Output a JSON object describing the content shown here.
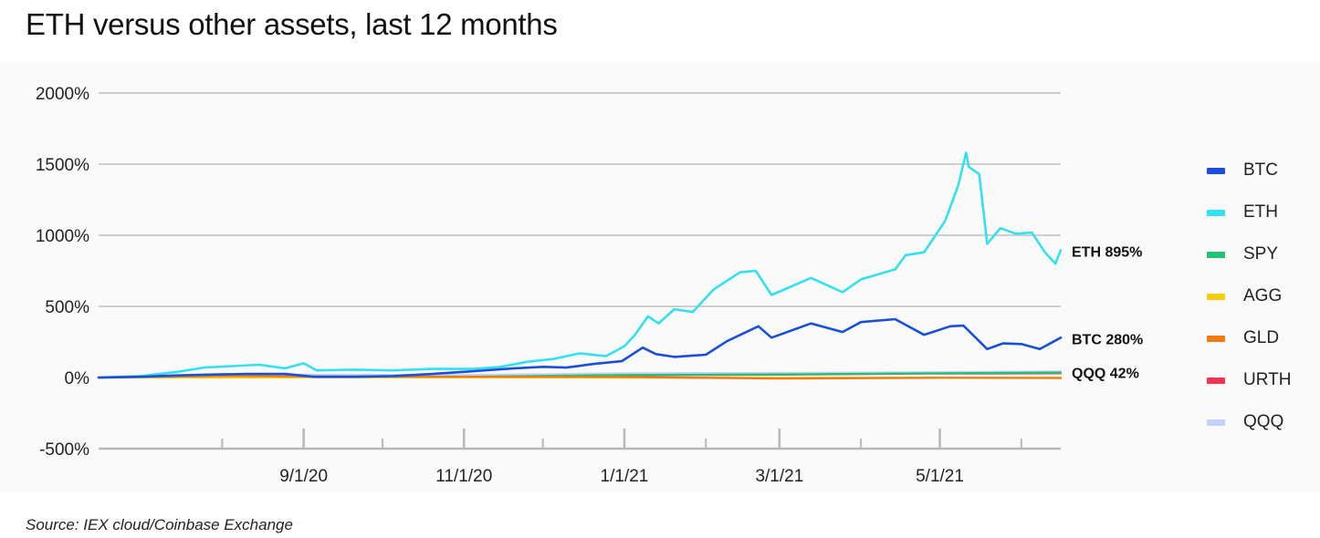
{
  "title": "ETH versus other assets, last 12 months",
  "source": "Source: IEX cloud/Coinbase Exchange",
  "chart_data": {
    "type": "line",
    "title": "ETH versus other assets, last 12 months",
    "xlabel": "",
    "ylabel": "",
    "ylim": [
      -500,
      2000
    ],
    "yticks": [
      "2000%",
      "1500%",
      "1000%",
      "500%",
      "0%",
      "-500%"
    ],
    "ytick_values": [
      2000,
      1500,
      1000,
      500,
      0,
      -500
    ],
    "xlim": [
      "2020-06-15",
      "2021-06-16"
    ],
    "xticks": [
      {
        "date": "2020-09-01",
        "label": "9/1/20"
      },
      {
        "date": "2020-11-01",
        "label": "11/1/20"
      },
      {
        "date": "2021-01-01",
        "label": "1/1/21"
      },
      {
        "date": "2021-03-01",
        "label": "3/1/21"
      },
      {
        "date": "2021-05-01",
        "label": "5/1/21"
      }
    ],
    "minor_xticks": [
      "2020-08-01",
      "2020-10-01",
      "2020-12-01",
      "2021-02-01",
      "2021-04-01",
      "2021-06-01"
    ],
    "grid": true,
    "legend_position": "right",
    "series": [
      {
        "name": "BTC",
        "color": "#1a4fd9",
        "points": [
          [
            "2020-06-15",
            0
          ],
          [
            "2020-07-01",
            5
          ],
          [
            "2020-07-15",
            15
          ],
          [
            "2020-07-25",
            20
          ],
          [
            "2020-08-10",
            25
          ],
          [
            "2020-08-25",
            25
          ],
          [
            "2020-09-05",
            5
          ],
          [
            "2020-09-20",
            5
          ],
          [
            "2020-10-05",
            10
          ],
          [
            "2020-10-20",
            25
          ],
          [
            "2020-11-05",
            45
          ],
          [
            "2020-11-20",
            65
          ],
          [
            "2020-12-01",
            75
          ],
          [
            "2020-12-10",
            70
          ],
          [
            "2020-12-20",
            95
          ],
          [
            "2020-12-31",
            115
          ],
          [
            "2021-01-08",
            210
          ],
          [
            "2021-01-13",
            165
          ],
          [
            "2021-01-20",
            145
          ],
          [
            "2021-02-01",
            160
          ],
          [
            "2021-02-09",
            255
          ],
          [
            "2021-02-21",
            360
          ],
          [
            "2021-02-26",
            280
          ],
          [
            "2021-03-13",
            380
          ],
          [
            "2021-03-25",
            320
          ],
          [
            "2021-04-01",
            390
          ],
          [
            "2021-04-14",
            410
          ],
          [
            "2021-04-25",
            300
          ],
          [
            "2021-05-05",
            360
          ],
          [
            "2021-05-10",
            365
          ],
          [
            "2021-05-19",
            200
          ],
          [
            "2021-05-25",
            240
          ],
          [
            "2021-06-01",
            235
          ],
          [
            "2021-06-08",
            200
          ],
          [
            "2021-06-16",
            280
          ]
        ]
      },
      {
        "name": "ETH",
        "color": "#33e0f2",
        "points": [
          [
            "2020-06-15",
            0
          ],
          [
            "2020-07-01",
            10
          ],
          [
            "2020-07-15",
            40
          ],
          [
            "2020-07-25",
            70
          ],
          [
            "2020-08-05",
            80
          ],
          [
            "2020-08-15",
            90
          ],
          [
            "2020-08-25",
            65
          ],
          [
            "2020-09-01",
            100
          ],
          [
            "2020-09-06",
            50
          ],
          [
            "2020-09-20",
            55
          ],
          [
            "2020-10-05",
            50
          ],
          [
            "2020-10-20",
            60
          ],
          [
            "2020-11-05",
            60
          ],
          [
            "2020-11-15",
            75
          ],
          [
            "2020-11-25",
            110
          ],
          [
            "2020-12-05",
            130
          ],
          [
            "2020-12-15",
            170
          ],
          [
            "2020-12-25",
            150
          ],
          [
            "2021-01-01",
            220
          ],
          [
            "2021-01-05",
            300
          ],
          [
            "2021-01-10",
            430
          ],
          [
            "2021-01-14",
            380
          ],
          [
            "2021-01-20",
            480
          ],
          [
            "2021-01-27",
            460
          ],
          [
            "2021-02-04",
            620
          ],
          [
            "2021-02-14",
            740
          ],
          [
            "2021-02-20",
            750
          ],
          [
            "2021-02-26",
            580
          ],
          [
            "2021-03-13",
            700
          ],
          [
            "2021-03-25",
            600
          ],
          [
            "2021-04-01",
            690
          ],
          [
            "2021-04-14",
            760
          ],
          [
            "2021-04-18",
            860
          ],
          [
            "2021-04-25",
            880
          ],
          [
            "2021-05-03",
            1100
          ],
          [
            "2021-05-08",
            1350
          ],
          [
            "2021-05-11",
            1580
          ],
          [
            "2021-05-12",
            1480
          ],
          [
            "2021-05-16",
            1430
          ],
          [
            "2021-05-19",
            940
          ],
          [
            "2021-05-24",
            1050
          ],
          [
            "2021-05-30",
            1010
          ],
          [
            "2021-06-05",
            1020
          ],
          [
            "2021-06-10",
            880
          ],
          [
            "2021-06-14",
            800
          ],
          [
            "2021-06-16",
            895
          ]
        ]
      },
      {
        "name": "SPY",
        "color": "#21c477",
        "points": [
          [
            "2020-06-15",
            0
          ],
          [
            "2020-09-01",
            8
          ],
          [
            "2020-11-01",
            5
          ],
          [
            "2021-01-01",
            18
          ],
          [
            "2021-03-01",
            22
          ],
          [
            "2021-05-01",
            30
          ],
          [
            "2021-06-16",
            35
          ]
        ]
      },
      {
        "name": "AGG",
        "color": "#f5cd0c",
        "points": [
          [
            "2020-06-15",
            0
          ],
          [
            "2020-09-01",
            1
          ],
          [
            "2020-11-01",
            1
          ],
          [
            "2021-01-01",
            0
          ],
          [
            "2021-03-01",
            -2
          ],
          [
            "2021-05-01",
            -2
          ],
          [
            "2021-06-16",
            -1
          ]
        ]
      },
      {
        "name": "GLD",
        "color": "#f07b0e",
        "points": [
          [
            "2020-06-15",
            0
          ],
          [
            "2020-08-05",
            12
          ],
          [
            "2020-09-01",
            8
          ],
          [
            "2020-11-01",
            6
          ],
          [
            "2021-01-01",
            4
          ],
          [
            "2021-03-01",
            -8
          ],
          [
            "2021-05-01",
            -2
          ],
          [
            "2021-06-16",
            -4
          ]
        ]
      },
      {
        "name": "URTH",
        "color": "#f0364e",
        "points": [
          [
            "2020-06-15",
            0
          ],
          [
            "2020-09-01",
            6
          ],
          [
            "2020-11-01",
            4
          ],
          [
            "2021-01-01",
            15
          ],
          [
            "2021-03-01",
            20
          ],
          [
            "2021-05-01",
            28
          ],
          [
            "2021-06-16",
            30
          ]
        ]
      },
      {
        "name": "QQQ",
        "color": "#c3d2fb",
        "points": [
          [
            "2020-06-15",
            0
          ],
          [
            "2020-09-01",
            20
          ],
          [
            "2020-11-01",
            18
          ],
          [
            "2021-01-01",
            30
          ],
          [
            "2021-03-01",
            32
          ],
          [
            "2021-05-01",
            38
          ],
          [
            "2021-06-16",
            42
          ]
        ]
      }
    ],
    "annotations": [
      {
        "text": "ETH 895%",
        "series": "ETH",
        "value": 895
      },
      {
        "text": "BTC 280%",
        "series": "BTC",
        "value": 280
      },
      {
        "text": "QQQ 42%",
        "series": "QQQ",
        "value": 42
      }
    ]
  }
}
